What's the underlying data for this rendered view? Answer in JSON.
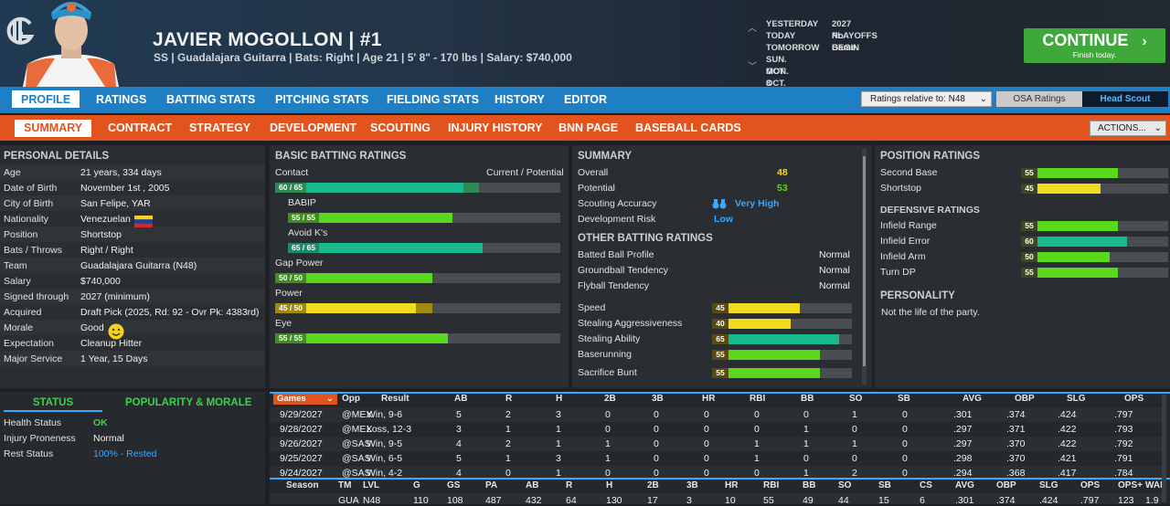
{
  "header": {
    "logo": "G",
    "name": "JAVIER MOGOLLON  |  #1",
    "sub": "SS | Guadalajara Guitarra  |  Bats: Right  |  Age 21  |  5' 8\"  - 170 lbs  |  Salary: $740,000",
    "dates": [
      {
        "d": "YESTERDAY",
        "e": "2027 PLAYOFFS BEGIN"
      },
      {
        "d": "TODAY",
        "e": "No Game."
      },
      {
        "d": "TOMORROW",
        "e": ""
      },
      {
        "d": "SUN. OCT. 3",
        "e": ""
      },
      {
        "d": "MON. OCT. 4",
        "e": ""
      }
    ],
    "continue": "CONTINUE",
    "continue_sub": "Finish today."
  },
  "nav1": [
    "PROFILE",
    "RATINGS",
    "BATTING STATS",
    "PITCHING STATS",
    "FIELDING STATS",
    "HISTORY",
    "EDITOR"
  ],
  "ratings_rel": "Ratings relative to: N48",
  "osa": "OSA Ratings",
  "head_scout": "Head Scout",
  "nav2": [
    "SUMMARY",
    "CONTRACT",
    "STRATEGY",
    "DEVELOPMENT",
    "SCOUTING",
    "INJURY HISTORY",
    "BNN PAGE",
    "BASEBALL CARDS"
  ],
  "actions": "ACTIONS...",
  "personal": {
    "title": "PERSONAL DETAILS",
    "rows": [
      [
        "Age",
        "21 years, 334 days"
      ],
      [
        "Date of Birth",
        "November 1st , 2005"
      ],
      [
        "City of Birth",
        "San Felipe, YAR"
      ],
      [
        "Nationality",
        "Venezuelan"
      ],
      [
        "Position",
        "Shortstop"
      ],
      [
        "Bats / Throws",
        "Right / Right"
      ],
      [
        "Team",
        "Guadalajara Guitarra (N48)"
      ],
      [
        "Salary",
        "$740,000"
      ],
      [
        "Signed through",
        "2027 (minimum)"
      ],
      [
        "Acquired",
        "Draft Pick (2025, Rd: 92 - Ovr Pk: 4383rd)"
      ],
      [
        "Morale",
        "Good"
      ],
      [
        "Expectation",
        "Cleanup Hitter"
      ],
      [
        "Major Service",
        "1 Year, 15 Days"
      ]
    ]
  },
  "status": {
    "tab1": "STATUS",
    "tab2": "POPULARITY & MORALE",
    "rows": [
      [
        "Health Status",
        "OK",
        "#3fd04a"
      ],
      [
        "Injury Proneness",
        "Normal",
        "#f0f0f0"
      ],
      [
        "Rest Status",
        "100% - Rested",
        "#3aa8ff"
      ]
    ]
  },
  "batting": {
    "title": "BASIC BATTING RATINGS",
    "cp": "Current / Potential",
    "items": [
      {
        "label": "Contact",
        "indent": false,
        "badge": "60 / 65",
        "cur": 60,
        "pot": 65,
        "color": "#18b98d",
        "bcol": "#2e8a52"
      },
      {
        "label": "BABIP",
        "indent": true,
        "badge": "55 / 55",
        "cur": 55,
        "pot": 55,
        "color": "#5ad81c",
        "bcol": "#3f8f1f"
      },
      {
        "label": "Avoid K's",
        "indent": true,
        "badge": "65 / 65",
        "cur": 65,
        "pot": 65,
        "color": "#18b98d",
        "bcol": "#1f8a6b"
      },
      {
        "label": "Gap Power",
        "indent": false,
        "badge": "50 / 50",
        "cur": 50,
        "pot": 50,
        "color": "#5ad81c",
        "bcol": "#3f8f1f"
      },
      {
        "label": "Power",
        "indent": false,
        "badge": "45 / 50",
        "cur": 45,
        "pot": 50,
        "color": "#f0dc1c",
        "bcol": "#a08a10"
      },
      {
        "label": "Eye",
        "indent": false,
        "badge": "55 / 55",
        "cur": 55,
        "pot": 55,
        "color": "#5ad81c",
        "bcol": "#3f8f1f"
      }
    ]
  },
  "summary": {
    "title": "SUMMARY",
    "rows": [
      [
        "Overall",
        "48",
        "#f0dc1c"
      ],
      [
        "Potential",
        "53",
        "#5ad81c"
      ],
      [
        "Scouting Accuracy",
        "Very High",
        "#3aa8ff"
      ],
      [
        "Development Risk",
        "Low",
        "#3aa8ff"
      ]
    ],
    "other_title": "OTHER BATTING RATINGS",
    "other": [
      [
        "Batted Ball Profile",
        "Normal"
      ],
      [
        "Groundball Tendency",
        "Normal"
      ],
      [
        "Flyball Tendency",
        "Normal"
      ]
    ],
    "bars": [
      {
        "label": "Speed",
        "v": 45,
        "color": "#f0dc1c"
      },
      {
        "label": "Stealing Aggressiveness",
        "v": 40,
        "color": "#f0dc1c"
      },
      {
        "label": "Stealing Ability",
        "v": 65,
        "color": "#18b98d"
      },
      {
        "label": "Baserunning",
        "v": 55,
        "color": "#5ad81c"
      },
      {
        "label": "Sacrifice Bunt",
        "v": 55,
        "color": "#5ad81c"
      }
    ]
  },
  "position": {
    "title": "POSITION RATINGS",
    "bars": [
      {
        "label": "Second Base",
        "v": 55,
        "color": "#5ad81c"
      },
      {
        "label": "Shortstop",
        "v": 45,
        "color": "#f0dc1c"
      }
    ],
    "def_title": "DEFENSIVE RATINGS",
    "def": [
      {
        "label": "Infield Range",
        "v": 55,
        "color": "#5ad81c"
      },
      {
        "label": "Infield Error",
        "v": 60,
        "color": "#18b98d"
      },
      {
        "label": "Infield Arm",
        "v": 50,
        "color": "#5ad81c"
      },
      {
        "label": "Turn DP",
        "v": 55,
        "color": "#5ad81c"
      }
    ],
    "pers_title": "PERSONALITY",
    "pers": "Not the life of the party."
  },
  "games": {
    "select": "Games",
    "headers": [
      "Opp",
      "Result",
      "AB",
      "R",
      "H",
      "2B",
      "3B",
      "HR",
      "RBI",
      "BB",
      "SO",
      "SB",
      "AVG",
      "OBP",
      "SLG",
      "OPS"
    ],
    "rows": [
      [
        "9/29/2027",
        "@MEX",
        "Win, 9-6",
        "5",
        "2",
        "3",
        "0",
        "0",
        "0",
        "0",
        "0",
        "1",
        "0",
        ".301",
        ".374",
        ".424",
        ".797"
      ],
      [
        "9/28/2027",
        "@MEX",
        "Loss, 12-3",
        "3",
        "1",
        "1",
        "0",
        "0",
        "0",
        "0",
        "1",
        "0",
        "0",
        ".297",
        ".371",
        ".422",
        ".793"
      ],
      [
        "9/26/2027",
        "@SAS",
        "Win, 9-5",
        "4",
        "2",
        "1",
        "1",
        "0",
        "0",
        "1",
        "1",
        "1",
        "0",
        ".297",
        ".370",
        ".422",
        ".792"
      ],
      [
        "9/25/2027",
        "@SAS",
        "Win, 6-5",
        "5",
        "1",
        "3",
        "1",
        "0",
        "0",
        "1",
        "0",
        "0",
        "0",
        ".298",
        ".370",
        ".421",
        ".791"
      ],
      [
        "9/24/2027",
        "@SAS",
        "Win, 4-2",
        "4",
        "0",
        "1",
        "0",
        "0",
        "0",
        "0",
        "1",
        "2",
        "0",
        ".294",
        ".368",
        ".417",
        ".784"
      ]
    ]
  },
  "season": {
    "headers": [
      "Season",
      "TM",
      "LVL",
      "G",
      "GS",
      "PA",
      "AB",
      "R",
      "H",
      "2B",
      "3B",
      "HR",
      "RBI",
      "BB",
      "SO",
      "SB",
      "CS",
      "AVG",
      "OBP",
      "SLG",
      "OPS",
      "OPS+",
      "WAR"
    ],
    "row": [
      "",
      "GUA",
      "N48",
      "110",
      "108",
      "487",
      "432",
      "64",
      "130",
      "17",
      "3",
      "10",
      "55",
      "49",
      "44",
      "15",
      "6",
      ".301",
      ".374",
      ".424",
      ".797",
      "123",
      "1.9"
    ]
  }
}
